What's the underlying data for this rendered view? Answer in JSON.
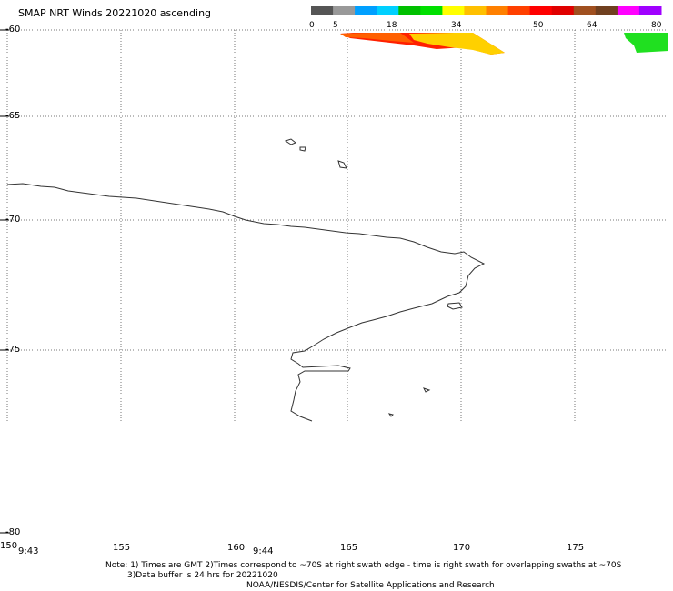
{
  "title": "SMAP NRT Winds 20221020 ascending",
  "colorbar": {
    "labels": [
      "0",
      "5",
      "18",
      "34",
      "50",
      "64",
      "80"
    ],
    "colors": [
      "#555555",
      "#999999",
      "#00a0ff",
      "#00d0ff",
      "#00c000",
      "#00e000",
      "#ffff00",
      "#ffc000",
      "#ff8000",
      "#ff4000",
      "#ff0000",
      "#e00000",
      "#a05020",
      "#704020",
      "#ff00ff",
      "#a000ff"
    ]
  },
  "lat_labels": [
    "-60",
    "-65",
    "-70",
    "-75",
    "-80"
  ],
  "lon_labels": [
    "150",
    "155",
    "160",
    "165",
    "170",
    "175"
  ],
  "time_labels": [
    "9:43",
    "9:44"
  ],
  "notes": {
    "line1": "Note: 1) Times are GMT 2)Times correspond to ~70S at right swath edge - time is right swath for overlapping swaths at ~70S",
    "line2": "3)Data buffer is 24 hrs for 20221020",
    "line3": "NOAA/NESDIS/Center for Satellite Applications and Research"
  },
  "swath_colors": {
    "swath_main": [
      "#ff2000",
      "#ff6000",
      "#ffb000",
      "#ffd000"
    ],
    "swath_right": "#20e020"
  }
}
